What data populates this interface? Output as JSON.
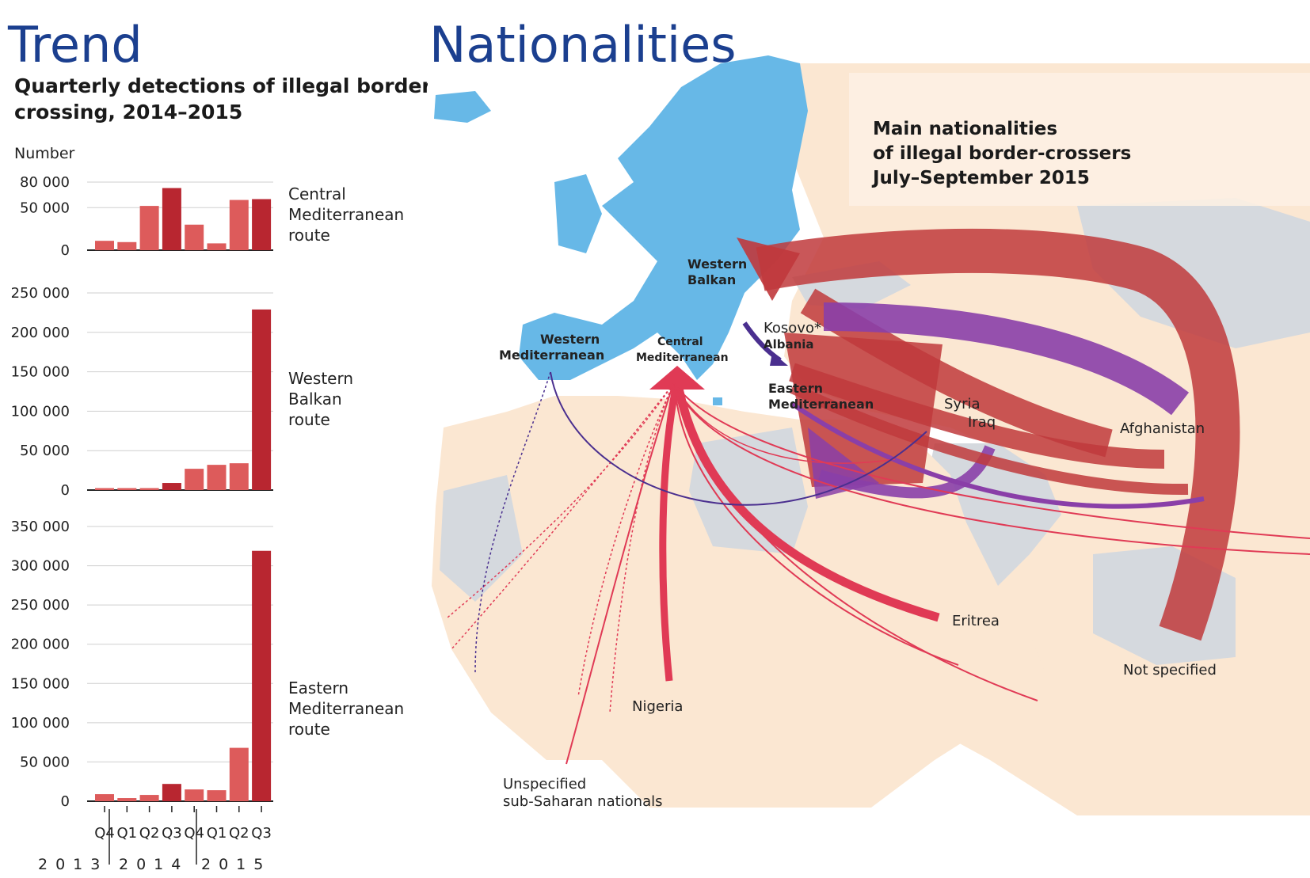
{
  "trend": {
    "title": "Trend",
    "subtitle_line1": "Quarterly detections of illegal border-",
    "subtitle_line2": "crossing, 2014–2015",
    "unit_label": "Number"
  },
  "nationalities": {
    "title": "Nationalities",
    "box_line1": "Main nationalities",
    "box_line2": "of illegal border-crossers",
    "box_line3": "July–September 2015"
  },
  "map": {
    "routes": [
      {
        "id": "western-balkan",
        "line1": "Western",
        "line2": "Balkan"
      },
      {
        "id": "western-mediterranean",
        "line1": "Western",
        "line2": "Mediterranean"
      },
      {
        "id": "central-mediterranean",
        "line1": "Central",
        "line2": "Mediterranean"
      },
      {
        "id": "eastern-mediterranean",
        "line1": "Eastern",
        "line2": "Mediterranean"
      }
    ],
    "nationalities": [
      {
        "id": "kosovo",
        "label": "Kosovo*"
      },
      {
        "id": "albania",
        "label": "Albania"
      },
      {
        "id": "syria",
        "label": "Syria"
      },
      {
        "id": "iraq",
        "label": "Iraq"
      },
      {
        "id": "afghanistan",
        "label": "Afghanistan"
      },
      {
        "id": "eritrea",
        "label": "Eritrea"
      },
      {
        "id": "nigeria",
        "label": "Nigeria"
      },
      {
        "id": "not-specified",
        "label": "Not specified"
      },
      {
        "id": "sub-saharan",
        "label": "Unspecified",
        "label2": "sub-Saharan nationals"
      }
    ],
    "colors": {
      "eu": "#67b8e7",
      "land": "#fbe7d2",
      "sea_gray": "#d5d9de",
      "not_specified": "#c0393c",
      "syria": "#8a3fa8",
      "eritrea": "#e03a55",
      "western_balkan_arrow": "#c0393c",
      "kosovo_albania": "#4a2f8f"
    }
  },
  "chart_data": [
    {
      "type": "bar",
      "route_label": [
        "Central",
        "Mediterranean",
        "route"
      ],
      "ylabel": "Number",
      "yticks": [
        0,
        50000,
        80000
      ],
      "tick_labels": [
        "0",
        "50 000",
        "80 000"
      ],
      "ylim": [
        0,
        80000
      ],
      "categories": [
        "Q4 2013",
        "Q1 2014",
        "Q2 2014",
        "Q3 2014",
        "Q4 2014",
        "Q1 2015",
        "Q2 2015",
        "Q3 2015"
      ],
      "values": [
        11000,
        9500,
        52000,
        73000,
        30000,
        8000,
        59000,
        60000
      ],
      "highlight_index": [
        3,
        7
      ],
      "colors": {
        "normal": "#dd5b5b",
        "highlight": "#b82630"
      }
    },
    {
      "type": "bar",
      "route_label": [
        "Western",
        "Balkan",
        "route"
      ],
      "yticks": [
        0,
        50000,
        100000,
        150000,
        200000,
        250000
      ],
      "tick_labels": [
        "0",
        "50 000",
        "100 000",
        "150 000",
        "200 000",
        "250 000"
      ],
      "ylim": [
        0,
        250000
      ],
      "categories": [
        "Q4 2013",
        "Q1 2014",
        "Q2 2014",
        "Q3 2014",
        "Q4 2014",
        "Q1 2015",
        "Q2 2015",
        "Q3 2015"
      ],
      "values": [
        2500,
        2500,
        2500,
        9000,
        27000,
        32000,
        34000,
        229000
      ],
      "highlight_index": [
        3,
        7
      ],
      "colors": {
        "normal": "#dd5b5b",
        "highlight": "#b82630"
      }
    },
    {
      "type": "bar",
      "route_label": [
        "Eastern",
        "Mediterranean",
        "route"
      ],
      "yticks": [
        0,
        50000,
        100000,
        150000,
        200000,
        250000,
        300000,
        350000
      ],
      "tick_labels": [
        "0",
        "50 000",
        "100 000",
        "150 000",
        "200 000",
        "250 000",
        "300 000",
        "350 000"
      ],
      "ylim": [
        0,
        350000
      ],
      "categories": [
        "Q4 2013",
        "Q1 2014",
        "Q2 2014",
        "Q3 2014",
        "Q4 2014",
        "Q1 2015",
        "Q2 2015",
        "Q3 2015"
      ],
      "values": [
        9000,
        4000,
        8000,
        22000,
        15000,
        14000,
        68000,
        319000
      ],
      "highlight_index": [
        3,
        7
      ],
      "colors": {
        "normal": "#dd5b5b",
        "highlight": "#b82630"
      }
    }
  ],
  "xaxis": {
    "quarters": [
      "Q4",
      "Q1",
      "Q2",
      "Q3",
      "Q4",
      "Q1",
      "Q2",
      "Q3"
    ],
    "years": [
      "2013",
      "2014",
      "2015"
    ]
  }
}
